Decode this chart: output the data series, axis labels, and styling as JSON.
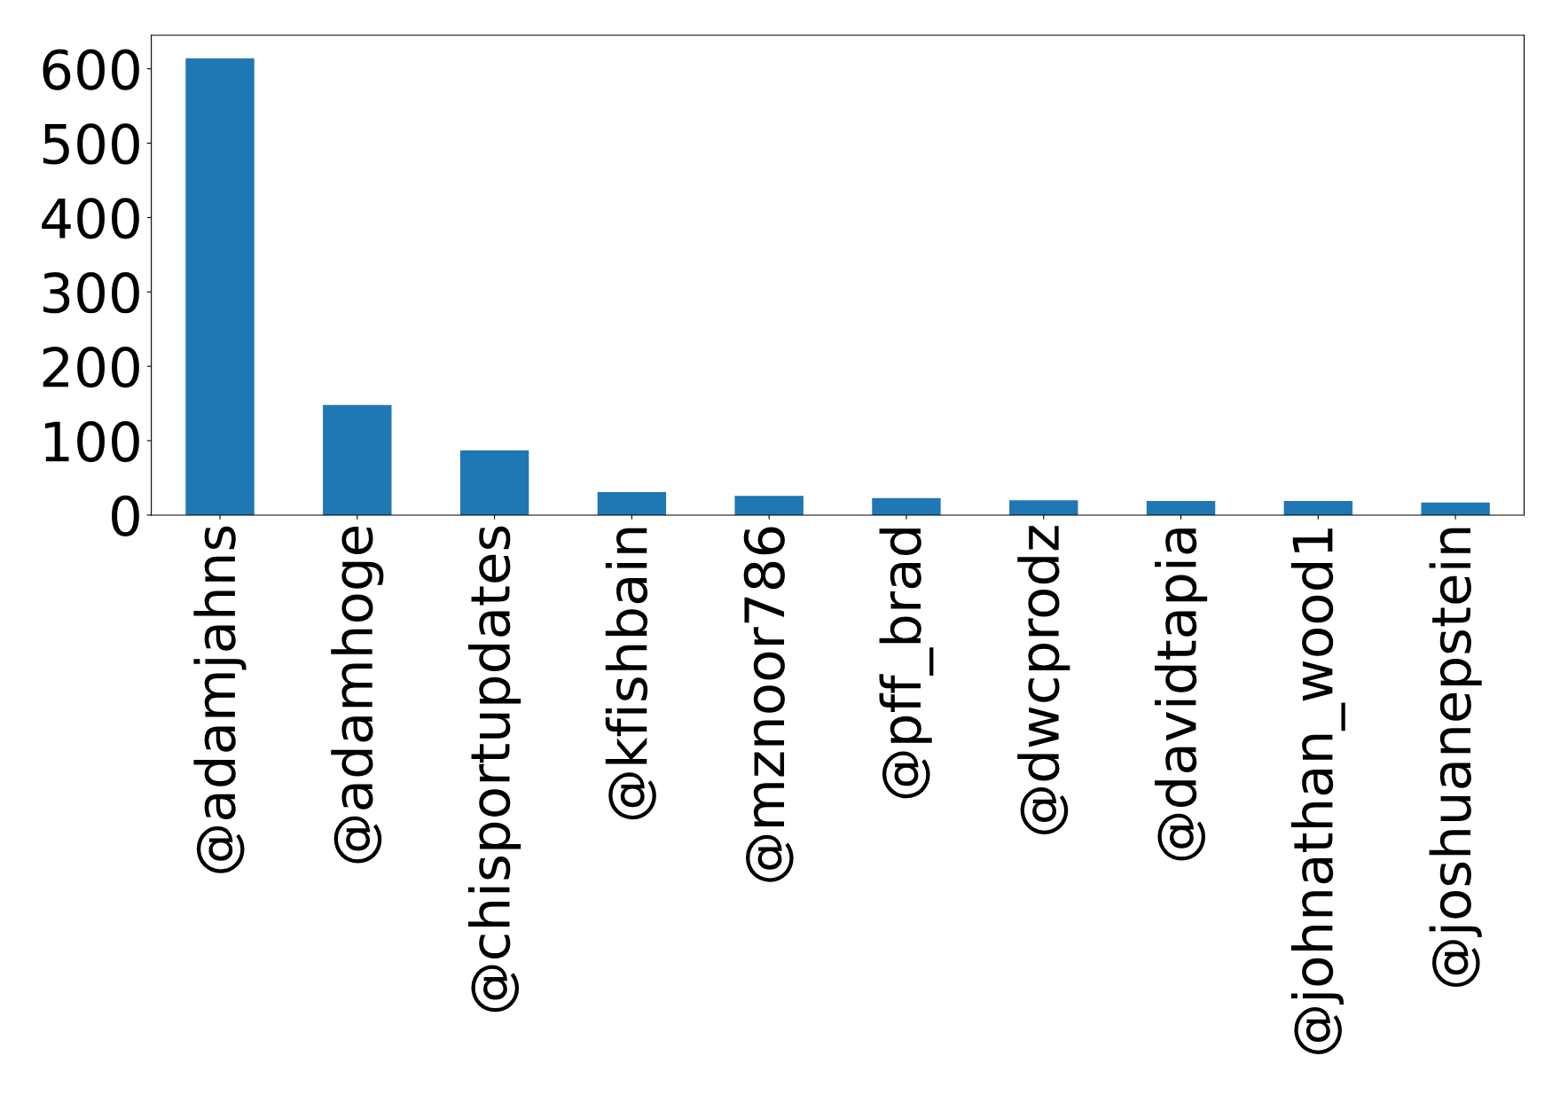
{
  "chart_data": {
    "type": "bar",
    "categories": [
      "@adamjahns",
      "@adamhoge",
      "@chisportupdates",
      "@kfishbain",
      "@mznoor786",
      "@pff_brad",
      "@dwcprodz",
      "@davidtapia",
      "@johnathan_wood1",
      "@joshuanepstein"
    ],
    "values": [
      614,
      148,
      87,
      31,
      26,
      23,
      20,
      19,
      19,
      17
    ],
    "color": "#1f77b4",
    "ylim": [
      0,
      645
    ],
    "yticks": [
      0,
      100,
      200,
      300,
      400,
      500,
      600
    ],
    "grid": false,
    "legend": false
  }
}
